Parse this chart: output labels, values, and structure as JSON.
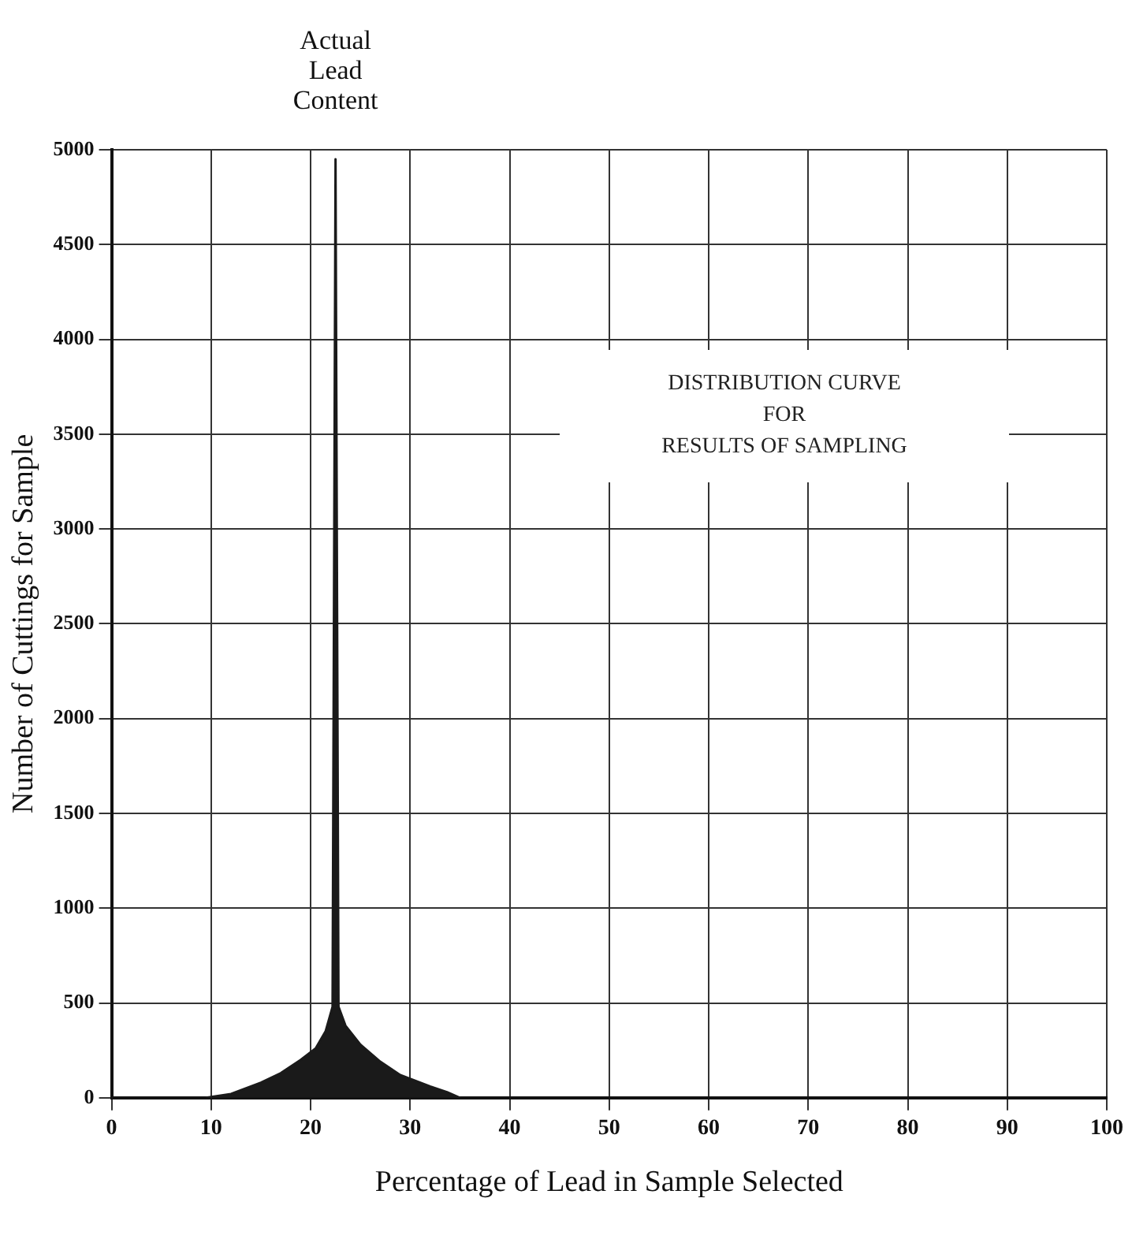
{
  "chart_data": {
    "type": "area",
    "title": "DISTRIBUTION CURVE\nFOR\nRESULTS OF SAMPLING",
    "xlabel": "Percentage of Lead in Sample Selected",
    "ylabel": "Number of Cuttings for Sample",
    "annotations": [
      "Actual\nLead\nContent"
    ],
    "x": [
      9.5,
      12,
      15,
      17,
      19,
      20.5,
      21.5,
      22.2,
      22.5,
      22.8,
      23.5,
      25,
      27,
      29,
      30.5,
      32,
      33.7,
      35
    ],
    "series": [
      {
        "color": "#1a1a1a",
        "values": [
          0,
          20,
          80,
          130,
          200,
          260,
          350,
          480,
          4950,
          480,
          380,
          280,
          190,
          120,
          90,
          60,
          30,
          0
        ]
      }
    ],
    "xlim": [
      0,
      100
    ],
    "xticks": [
      0,
      10,
      20,
      30,
      40,
      50,
      60,
      70,
      80,
      90,
      100
    ],
    "ylim": [
      0,
      5000
    ],
    "yticks": [
      0,
      500,
      1000,
      1500,
      2000,
      2500,
      3000,
      3500,
      4000,
      4500,
      5000
    ],
    "grid": true,
    "legend": false
  }
}
